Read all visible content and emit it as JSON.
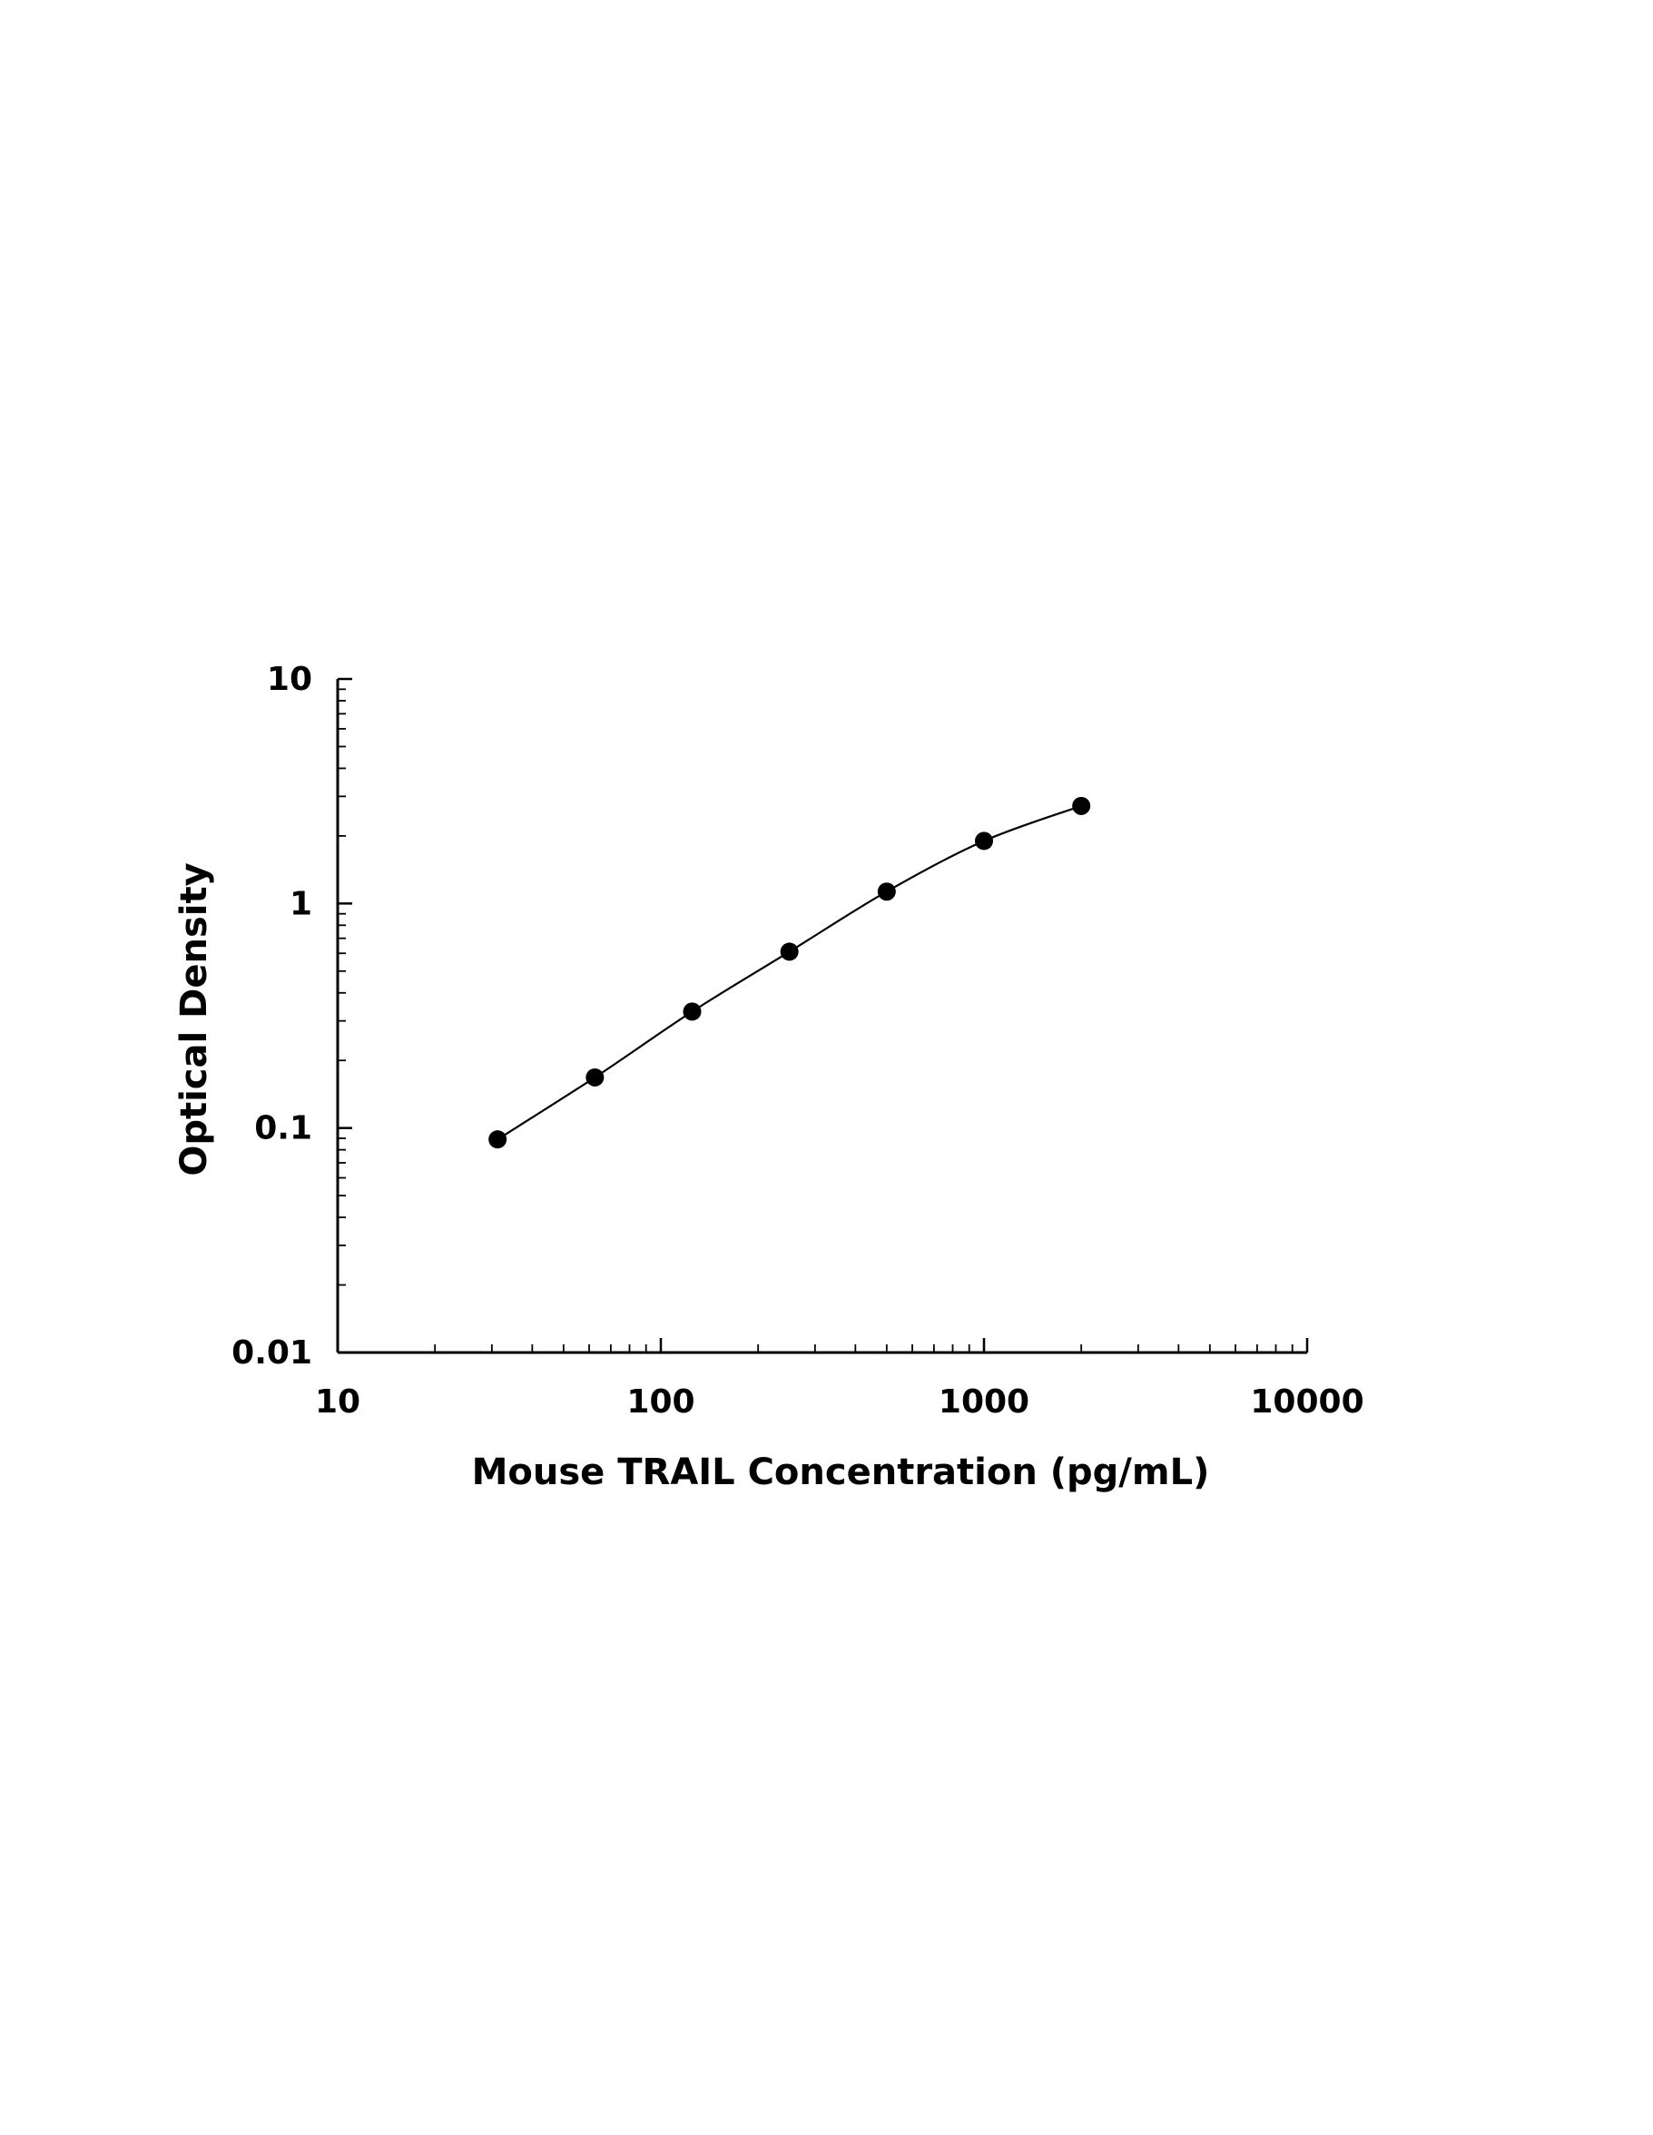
{
  "chart_data": {
    "type": "scatter",
    "title": "",
    "xlabel": "Mouse TRAIL Concentration (pg/mL)",
    "ylabel": "Optical Density",
    "x_scale": "log",
    "y_scale": "log",
    "xlim": [
      10,
      10000
    ],
    "ylim": [
      0.01,
      10
    ],
    "x_ticks": [
      "10",
      "100",
      "1000",
      "10000"
    ],
    "y_ticks": [
      "0.01",
      "0.1",
      "1",
      "10"
    ],
    "grid": false,
    "legend": "none",
    "fit_curve": true,
    "marker_color": "#000000",
    "series": [
      {
        "x": [
          31.25,
          62.5,
          125,
          250,
          500,
          1000,
          2000
        ],
        "y": [
          0.089,
          0.168,
          0.33,
          0.61,
          1.13,
          1.9,
          2.72
        ]
      }
    ]
  }
}
